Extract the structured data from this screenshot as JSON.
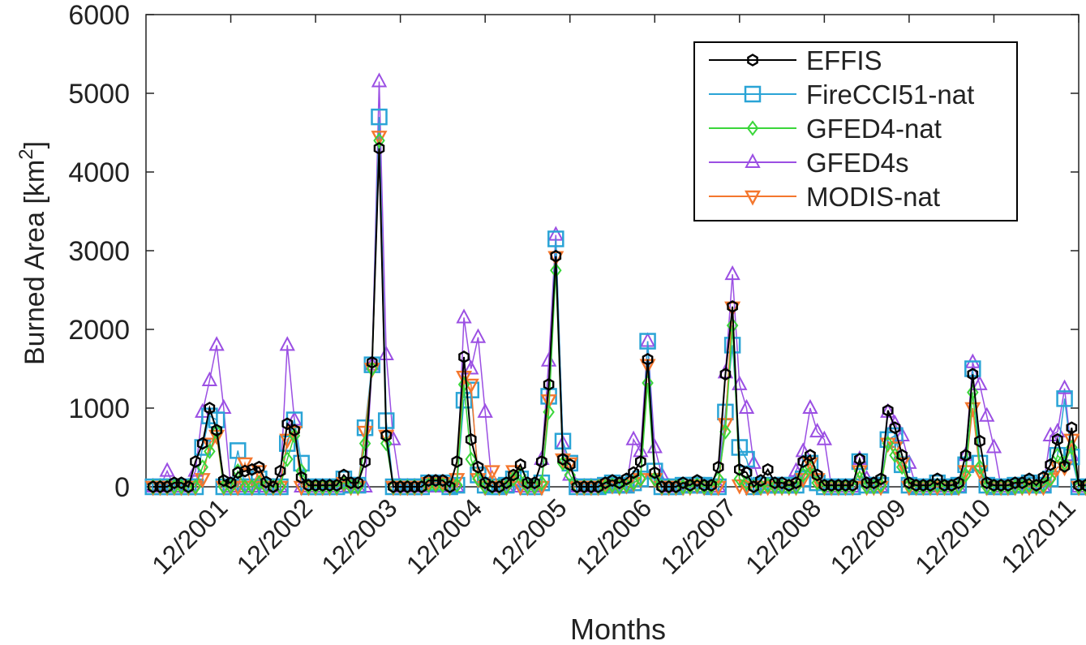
{
  "chart_data": {
    "type": "line",
    "title": "",
    "xlabel": "Months",
    "ylabel": "Burned Area [km",
    "ylabel_superscript": "2",
    "ylabel_suffix": "]",
    "ylim": [
      0,
      6000
    ],
    "yticks": [
      0,
      1000,
      2000,
      3000,
      4000,
      5000,
      6000
    ],
    "xlim": [
      0,
      132
    ],
    "xtick_positions": [
      12,
      24,
      36,
      48,
      60,
      72,
      84,
      96,
      108,
      120,
      132
    ],
    "xtick_labels": [
      "12/2001",
      "12/2002",
      "12/2003",
      "12/2004",
      "12/2005",
      "12/2006",
      "12/2007",
      "12/2008",
      "12/2009",
      "12/2010",
      "12/2011"
    ],
    "legend_position": "top-right",
    "series": [
      {
        "name": "EFFIS",
        "color": "#000000",
        "marker": "hexagon",
        "values": [
          0,
          0,
          0,
          50,
          50,
          0,
          320,
          550,
          1000,
          720,
          80,
          50,
          180,
          200,
          220,
          250,
          60,
          0,
          200,
          800,
          720,
          120,
          20,
          20,
          20,
          20,
          20,
          150,
          50,
          50,
          320,
          1580,
          4300,
          650,
          0,
          0,
          0,
          0,
          0,
          80,
          80,
          80,
          0,
          320,
          1650,
          600,
          250,
          50,
          0,
          0,
          50,
          150,
          280,
          50,
          50,
          320,
          1300,
          2930,
          350,
          280,
          0,
          0,
          0,
          0,
          50,
          80,
          50,
          100,
          180,
          320,
          1620,
          180,
          0,
          0,
          0,
          50,
          20,
          80,
          20,
          20,
          250,
          1430,
          2290,
          220,
          180,
          0,
          80,
          220,
          50,
          50,
          20,
          50,
          320,
          400,
          150,
          20,
          20,
          20,
          20,
          20,
          350,
          50,
          50,
          100,
          970,
          750,
          400,
          50,
          20,
          20,
          20,
          100,
          20,
          20,
          50,
          400,
          1430,
          580,
          50,
          20,
          20,
          20,
          50,
          50,
          100,
          20,
          120,
          280,
          600,
          260,
          750,
          20,
          20
        ]
      },
      {
        "name": "FireCCI51-nat",
        "color": "#2aa4d6",
        "marker": "square",
        "values": [
          0,
          0,
          0,
          0,
          0,
          0,
          0,
          500,
          900,
          850,
          0,
          0,
          460,
          0,
          0,
          100,
          0,
          0,
          0,
          550,
          850,
          300,
          0,
          0,
          0,
          0,
          0,
          100,
          20,
          20,
          750,
          1550,
          4700,
          840,
          0,
          0,
          0,
          0,
          0,
          50,
          50,
          50,
          0,
          20,
          1100,
          1230,
          150,
          20,
          0,
          0,
          20,
          100,
          100,
          0,
          0,
          50,
          1150,
          3150,
          580,
          300,
          0,
          0,
          0,
          0,
          20,
          50,
          20,
          20,
          50,
          100,
          1850,
          200,
          0,
          0,
          0,
          20,
          20,
          20,
          20,
          0,
          0,
          950,
          1800,
          500,
          350,
          0,
          20,
          20,
          20,
          20,
          20,
          20,
          100,
          300,
          50,
          0,
          0,
          0,
          0,
          0,
          320,
          20,
          20,
          20,
          600,
          650,
          280,
          20,
          0,
          0,
          0,
          50,
          0,
          0,
          20,
          280,
          1500,
          300,
          20,
          0,
          0,
          0,
          20,
          20,
          50,
          20,
          20,
          100,
          400,
          1120,
          380,
          0,
          0
        ]
      },
      {
        "name": "GFED4-nat",
        "color": "#3bd63b",
        "marker": "diamond",
        "values": [
          0,
          0,
          0,
          0,
          0,
          0,
          0,
          250,
          450,
          700,
          0,
          0,
          200,
          0,
          0,
          50,
          0,
          0,
          0,
          350,
          650,
          200,
          0,
          0,
          0,
          0,
          0,
          50,
          0,
          0,
          550,
          1500,
          4400,
          550,
          0,
          0,
          0,
          0,
          0,
          20,
          20,
          20,
          0,
          20,
          1300,
          350,
          100,
          0,
          0,
          0,
          0,
          100,
          150,
          0,
          0,
          50,
          950,
          2750,
          300,
          150,
          0,
          0,
          0,
          0,
          0,
          20,
          0,
          20,
          50,
          100,
          1320,
          100,
          0,
          0,
          0,
          0,
          0,
          20,
          0,
          0,
          100,
          700,
          2050,
          100,
          50,
          0,
          0,
          20,
          0,
          0,
          0,
          0,
          150,
          250,
          50,
          0,
          0,
          0,
          0,
          0,
          200,
          0,
          0,
          20,
          550,
          400,
          250,
          20,
          0,
          0,
          0,
          20,
          0,
          0,
          0,
          150,
          1200,
          250,
          0,
          0,
          0,
          0,
          0,
          0,
          20,
          0,
          20,
          100,
          400,
          300,
          500,
          0,
          0
        ]
      },
      {
        "name": "GFED4s",
        "color": "#9b4fe3",
        "marker": "triangle-up",
        "values": [
          0,
          0,
          200,
          0,
          0,
          0,
          200,
          950,
          1350,
          1800,
          1000,
          0,
          0,
          0,
          0,
          0,
          0,
          0,
          0,
          1800,
          850,
          0,
          0,
          0,
          0,
          0,
          0,
          0,
          0,
          0,
          0,
          1550,
          5150,
          1680,
          600,
          0,
          0,
          0,
          0,
          0,
          0,
          0,
          0,
          0,
          2150,
          1500,
          1900,
          950,
          0,
          0,
          0,
          0,
          0,
          0,
          0,
          350,
          1600,
          3200,
          550,
          150,
          0,
          0,
          0,
          0,
          0,
          0,
          0,
          0,
          600,
          450,
          1850,
          500,
          150,
          0,
          0,
          0,
          0,
          0,
          0,
          0,
          0,
          1450,
          2700,
          1300,
          1000,
          300,
          0,
          0,
          0,
          0,
          0,
          200,
          450,
          1000,
          700,
          600,
          0,
          0,
          0,
          0,
          350,
          100,
          0,
          0,
          950,
          800,
          650,
          300,
          0,
          0,
          0,
          0,
          0,
          0,
          0,
          400,
          1580,
          1300,
          900,
          500,
          0,
          0,
          0,
          0,
          0,
          0,
          0,
          650,
          700,
          1250,
          400,
          0,
          0
        ]
      },
      {
        "name": "MODIS-nat",
        "color": "#f4772e",
        "marker": "triangle-down",
        "values": [
          0,
          0,
          0,
          0,
          0,
          0,
          0,
          100,
          550,
          650,
          0,
          0,
          0,
          300,
          0,
          200,
          0,
          0,
          0,
          600,
          700,
          0,
          0,
          0,
          0,
          0,
          0,
          50,
          0,
          0,
          700,
          1500,
          4450,
          650,
          0,
          0,
          0,
          0,
          0,
          50,
          50,
          50,
          0,
          100,
          1400,
          1300,
          100,
          0,
          200,
          0,
          0,
          200,
          0,
          0,
          0,
          0,
          1100,
          2920,
          350,
          300,
          0,
          0,
          0,
          0,
          20,
          20,
          0,
          20,
          50,
          100,
          1550,
          100,
          0,
          0,
          0,
          0,
          0,
          20,
          0,
          0,
          0,
          800,
          2280,
          20,
          0,
          0,
          0,
          0,
          0,
          0,
          0,
          0,
          100,
          300,
          100,
          0,
          0,
          0,
          0,
          0,
          200,
          0,
          0,
          0,
          550,
          500,
          300,
          0,
          0,
          0,
          0,
          0,
          0,
          0,
          0,
          200,
          1000,
          200,
          0,
          0,
          0,
          0,
          0,
          0,
          0,
          0,
          0,
          100,
          250,
          250,
          600,
          0,
          0
        ]
      }
    ]
  }
}
